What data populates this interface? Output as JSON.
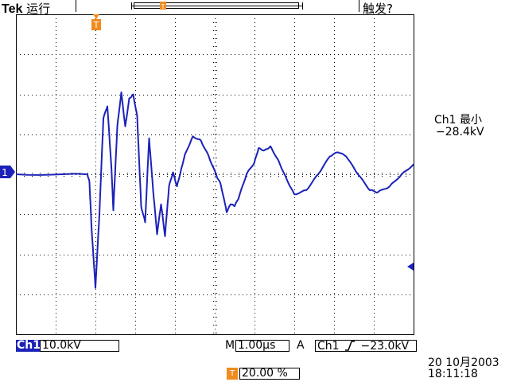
{
  "header": {
    "brand": "Tek",
    "run_state": "运行",
    "trigger_status": "触发?"
  },
  "markers": {
    "trigger_pos_letter": "T",
    "ch1_ground_label": "1"
  },
  "measurement": {
    "label": "Ch1 最小",
    "value": "−28.4kV"
  },
  "status_bar": {
    "channel": "Ch1",
    "channel_scale": "10.0kV",
    "timebase_prefix": "M",
    "timebase": "1.00µs",
    "trigger_mode": "A",
    "trigger_source": "Ch1",
    "trigger_level": "−23.0kV",
    "trigger_position": "20.00 %"
  },
  "clock": {
    "date": "20 10月2003",
    "time": "18:11:18"
  },
  "colors": {
    "trace": "#1c22b8",
    "marker": "#f08b1e",
    "grid": "#000000"
  },
  "chart_data": {
    "type": "line",
    "title": "",
    "xlabel": "",
    "ylabel": "",
    "x_divisions": 10,
    "y_divisions": 8,
    "series": [
      {
        "name": "Ch1",
        "x_unit": "µs",
        "y_unit": "kV",
        "points": [
          [
            -5.0,
            0.0
          ],
          [
            -3.2,
            0.0
          ],
          [
            -3.15,
            -2.0
          ],
          [
            -3.1,
            -13.0
          ],
          [
            -3.0,
            -28.4
          ],
          [
            -2.9,
            -10.0
          ],
          [
            -2.8,
            14.0
          ],
          [
            -2.7,
            17.0
          ],
          [
            -2.6,
            2.0
          ],
          [
            -2.55,
            -9.0
          ],
          [
            -2.45,
            12.0
          ],
          [
            -2.35,
            20.5
          ],
          [
            -2.25,
            12.0
          ],
          [
            -2.15,
            19.0
          ],
          [
            -2.05,
            20.0
          ],
          [
            -1.95,
            14.5
          ],
          [
            -1.85,
            -8.0
          ],
          [
            -1.75,
            -12.0
          ],
          [
            -1.65,
            9.0
          ],
          [
            -1.55,
            -4.0
          ],
          [
            -1.45,
            -15.0
          ],
          [
            -1.35,
            -7.5
          ],
          [
            -1.25,
            -15.5
          ],
          [
            -1.15,
            -3.0
          ],
          [
            -1.05,
            0.5
          ],
          [
            -0.95,
            -3.0
          ],
          [
            -0.85,
            1.0
          ],
          [
            -0.75,
            5.0
          ],
          [
            -0.55,
            9.5
          ],
          [
            -0.35,
            8.5
          ],
          [
            -0.15,
            4.5
          ],
          [
            0.05,
            -0.5
          ],
          [
            0.15,
            -2.5
          ],
          [
            0.3,
            -9.5
          ],
          [
            0.4,
            -7.5
          ],
          [
            0.5,
            -8.0
          ],
          [
            0.6,
            -6.0
          ],
          [
            0.8,
            0.0
          ],
          [
            1.0,
            3.0
          ],
          [
            1.1,
            6.5
          ],
          [
            1.25,
            6.0
          ],
          [
            1.4,
            7.0
          ],
          [
            1.6,
            3.5
          ],
          [
            1.8,
            -1.0
          ],
          [
            2.0,
            -5.0
          ],
          [
            2.3,
            -4.0
          ],
          [
            2.6,
            0.0
          ],
          [
            2.9,
            4.5
          ],
          [
            3.1,
            5.5
          ],
          [
            3.3,
            4.5
          ],
          [
            3.6,
            0.0
          ],
          [
            3.9,
            -4.0
          ],
          [
            4.1,
            -4.5
          ],
          [
            4.4,
            -3.0
          ],
          [
            4.7,
            0.0
          ],
          [
            5.0,
            2.5
          ]
        ]
      }
    ]
  }
}
